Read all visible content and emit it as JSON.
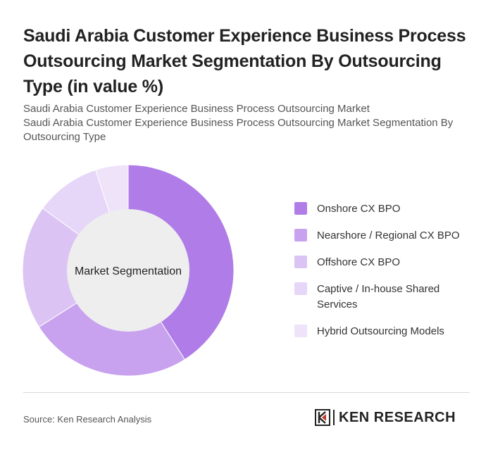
{
  "title": "Saudi Arabia Customer Experience Business Process Outsourcing Market Segmentation By Outsourcing Type (in value %)",
  "subtitle_line1": "Saudi Arabia Customer Experience Business Process Outsourcing Market",
  "subtitle_line2": "Saudi Arabia Customer Experience Business Process Outsourcing Market Segmentation By Outsourcing Type",
  "source": "Source: Ken Research Analysis",
  "brand": "KEN RESEARCH",
  "chart_data": {
    "type": "pie",
    "center_label": "Market Segmentation",
    "categories": [
      "Onshore CX BPO",
      "Nearshore / Regional CX BPO",
      "Offshore CX BPO",
      "Captive / In-house Shared Services",
      "Hybrid Outsourcing Models"
    ],
    "values": [
      41,
      25,
      19,
      10,
      5
    ],
    "colors": [
      "#b07de8",
      "#c8a2ef",
      "#dbc4f3",
      "#e6d6f7",
      "#eee3f9"
    ],
    "legend_position": "right"
  }
}
